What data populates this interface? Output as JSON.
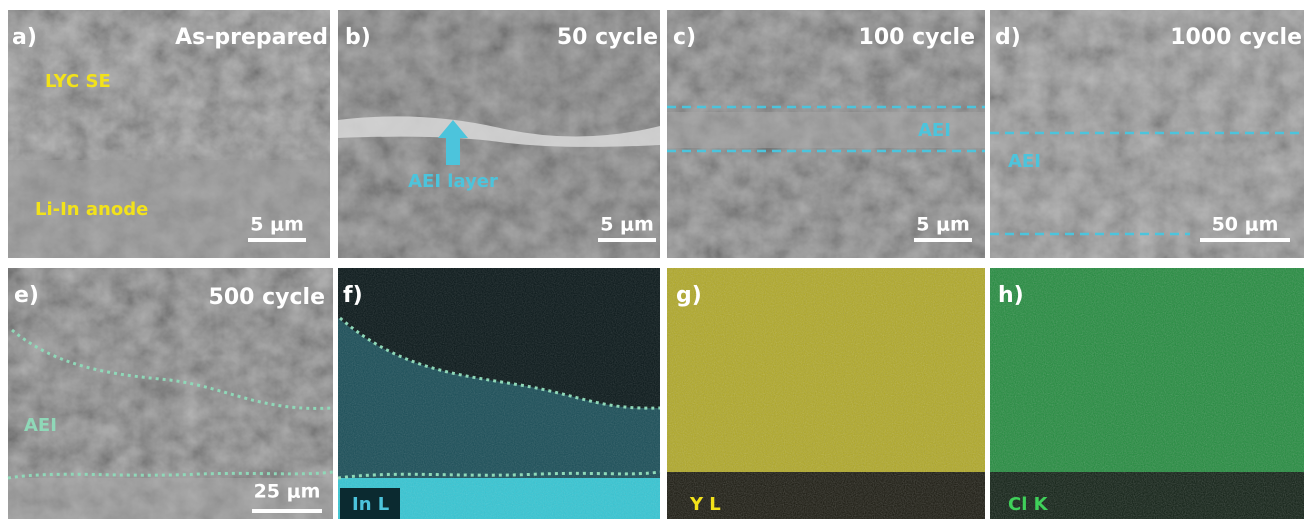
{
  "panels": [
    {
      "label": "a)",
      "title": "As-prepared",
      "annotations": [
        "LYC SE",
        "Li-In anode"
      ],
      "scale_bar": "5 μm"
    },
    {
      "label": "b)",
      "title": "50 cycle",
      "annotations": [
        "AEI layer"
      ],
      "scale_bar": "5 μm"
    },
    {
      "label": "c)",
      "title": "100 cycle",
      "annotations": [
        "AEI"
      ],
      "scale_bar": "5 μm"
    },
    {
      "label": "d)",
      "title": "1000 cycle",
      "annotations": [
        "AEI"
      ],
      "scale_bar": "50 μm"
    },
    {
      "label": "e)",
      "title": "500 cycle",
      "annotations": [
        "AEI"
      ],
      "scale_bar": "25 μm"
    },
    {
      "label": "f)",
      "annotations": [
        "In L"
      ]
    },
    {
      "label": "g)",
      "annotations": [
        "Y L"
      ]
    },
    {
      "label": "h)",
      "annotations": [
        "Cl K"
      ]
    }
  ]
}
